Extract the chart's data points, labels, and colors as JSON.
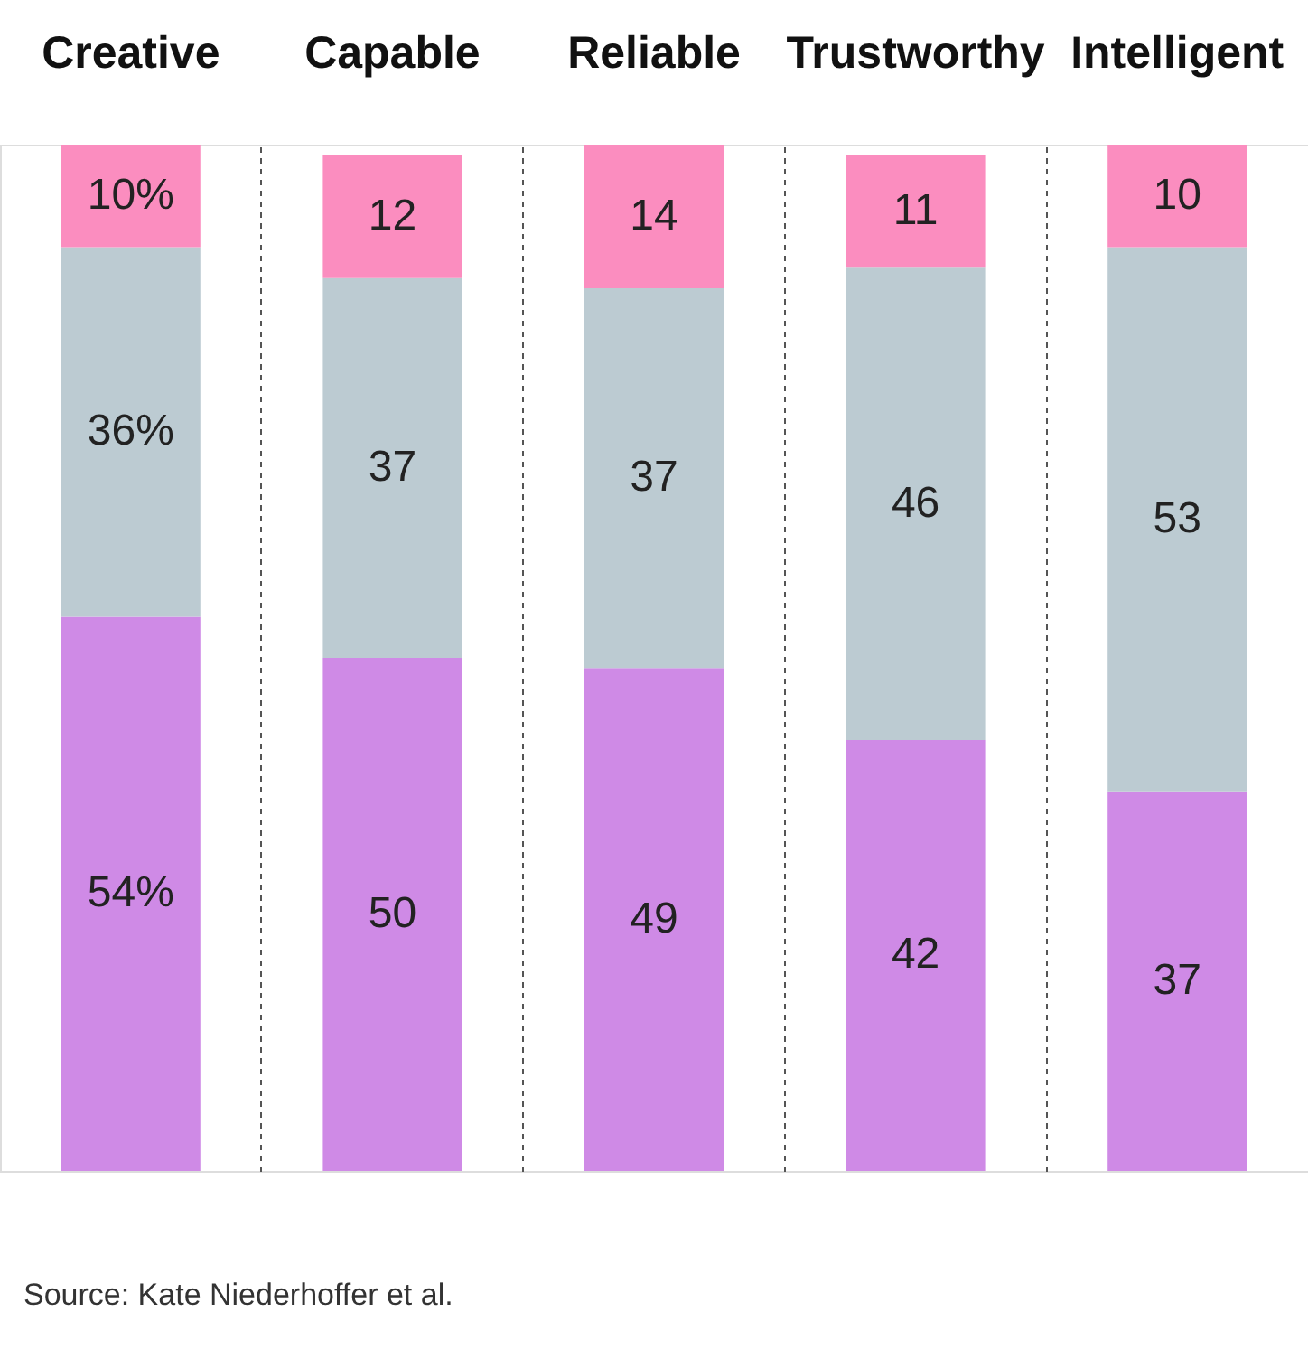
{
  "chart_data": {
    "type": "bar",
    "stacked": true,
    "categories": [
      "Creative",
      "Capable",
      "Reliable",
      "Trustworthy",
      "Intelligent"
    ],
    "series": [
      {
        "color": "#cf8ae6",
        "values": [
          54,
          50,
          49,
          42,
          37
        ],
        "value_labels": [
          "54%",
          "50",
          "49",
          "42",
          "37"
        ]
      },
      {
        "color": "#bccbd2",
        "values": [
          36,
          37,
          37,
          46,
          53
        ],
        "value_labels": [
          "36%",
          "37",
          "37",
          "46",
          "53"
        ]
      },
      {
        "color": "#fb8dbf",
        "values": [
          10,
          12,
          14,
          11,
          10
        ],
        "value_labels": [
          "10%",
          "12",
          "14",
          "11",
          "10"
        ]
      }
    ],
    "ylim": [
      0,
      100
    ],
    "tick_labels": "x",
    "grid": "x",
    "annotations": [
      "Source: Kate Niederhoffer et al."
    ]
  }
}
